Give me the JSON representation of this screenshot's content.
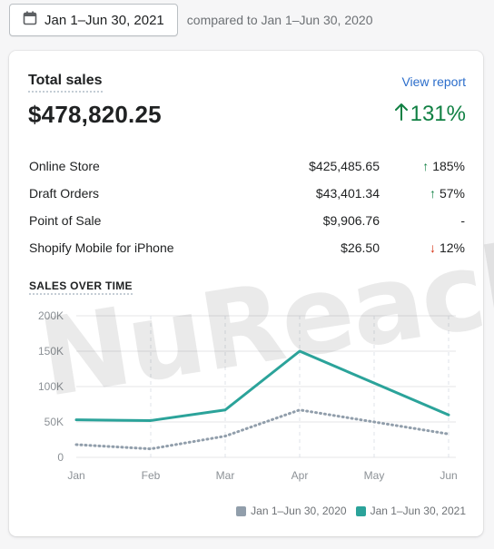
{
  "header": {
    "date_range": "Jan 1–Jun 30, 2021",
    "comparison": "compared to Jan 1–Jun 30, 2020"
  },
  "card": {
    "title": "Total sales",
    "view_report": "View report",
    "total": "$478,820.25",
    "total_change": "131%",
    "total_change_direction": "up",
    "rows": [
      {
        "label": "Online Store",
        "value": "$425,485.65",
        "change": "185%",
        "direction": "up"
      },
      {
        "label": "Draft Orders",
        "value": "$43,401.34",
        "change": "57%",
        "direction": "up"
      },
      {
        "label": "Point of Sale",
        "value": "$9,906.76",
        "change": "-",
        "direction": "none"
      },
      {
        "label": "Shopify Mobile for iPhone",
        "value": "$26.50",
        "change": "12%",
        "direction": "down"
      }
    ],
    "section_title": "SALES OVER TIME"
  },
  "watermark": "NuReach",
  "colors": {
    "current": "#2ba39a",
    "previous": "#919eab",
    "positive": "#108043",
    "negative": "#d72c0d",
    "link": "#2c6ecb"
  },
  "chart_data": {
    "type": "line",
    "x": [
      "Jan",
      "Feb",
      "Mar",
      "Apr",
      "May",
      "Jun"
    ],
    "yticks": [
      "200K",
      "150K",
      "100K",
      "50K",
      "0"
    ],
    "ylim": [
      0,
      200000
    ],
    "series": [
      {
        "name": "Jan 1–Jun 30, 2020",
        "style": "dotted",
        "color": "#919eab",
        "values": [
          18000,
          12000,
          30000,
          67000,
          50000,
          33000
        ]
      },
      {
        "name": "Jan 1–Jun 30, 2021",
        "style": "solid",
        "color": "#2ba39a",
        "values": [
          53000,
          52000,
          67000,
          150000,
          105000,
          60000
        ]
      }
    ],
    "grid": true,
    "legend": "bottom-right"
  }
}
